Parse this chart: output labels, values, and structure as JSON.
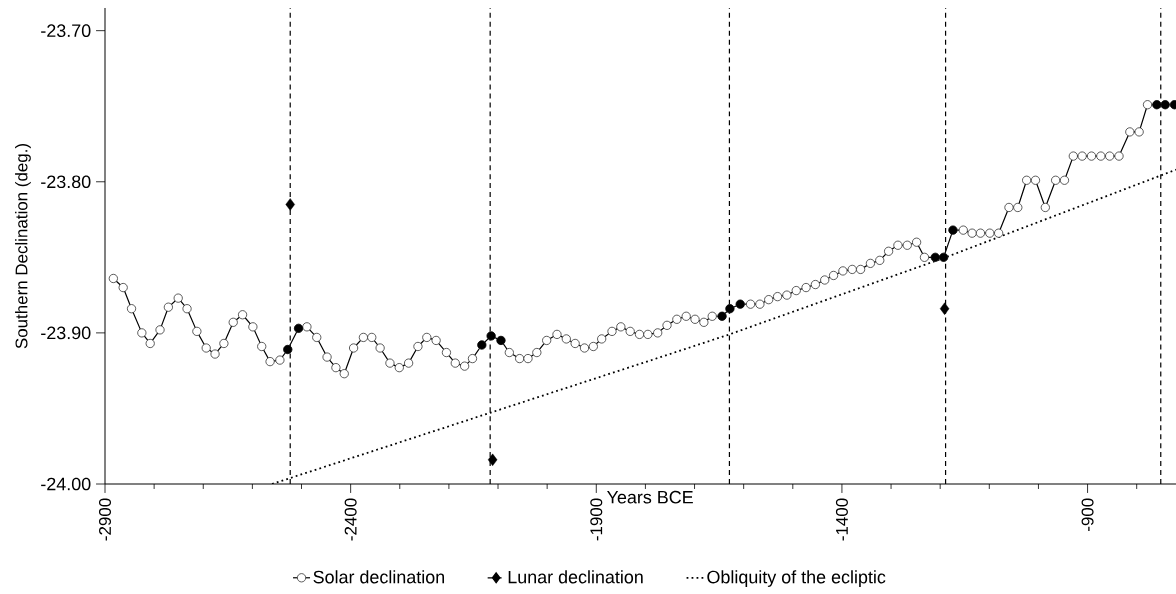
{
  "chart_data": {
    "type": "line",
    "xlabel": "Years BCE",
    "ylabel": "Southern Declination (deg.)",
    "xlim": [
      -2900,
      -720
    ],
    "ylim": [
      -24.0,
      -23.685
    ],
    "xticks": [
      -2900,
      {
        "value": -2800,
        "label": null
      },
      {
        "value": -2700,
        "label": null
      },
      {
        "value": -2600,
        "label": null
      },
      {
        "value": -2500,
        "label": null
      },
      -2400,
      {
        "value": -2300,
        "label": null
      },
      {
        "value": -2200,
        "label": null
      },
      {
        "value": -2100,
        "label": null
      },
      {
        "value": -2000,
        "label": null
      },
      -1900,
      {
        "value": -1800,
        "label": null
      },
      {
        "value": -1700,
        "label": null
      },
      {
        "value": -1600,
        "label": null
      },
      {
        "value": -1500,
        "label": null
      },
      -1400,
      {
        "value": -1300,
        "label": null
      },
      {
        "value": -1200,
        "label": null
      },
      {
        "value": -1100,
        "label": null
      },
      {
        "value": -1000,
        "label": null
      },
      -900,
      {
        "value": -800,
        "label": null
      }
    ],
    "yticks": [
      {
        "value": -23.7,
        "label": "-23.70"
      },
      {
        "value": -23.8,
        "label": "-23.80"
      },
      {
        "value": -23.9,
        "label": "-23.90"
      },
      {
        "value": -24.0,
        "label": "-24.00"
      }
    ],
    "legend": "bottom",
    "ref_lines": [
      {
        "axis": "x",
        "value": -2523,
        "color": "#000000",
        "line_style": "dashed"
      },
      {
        "axis": "x",
        "value": -2116,
        "color": "#000000",
        "line_style": "dashed"
      },
      {
        "axis": "x",
        "value": -1629,
        "color": "#000000",
        "line_style": "dashed"
      },
      {
        "axis": "x",
        "value": -1189,
        "color": "#000000",
        "line_style": "dashed"
      },
      {
        "axis": "x",
        "value": -751,
        "color": "#000000",
        "line_style": "dashed"
      }
    ],
    "series": [
      {
        "name": "Solar declination",
        "color": "#000000",
        "marker": "circle",
        "line_style": "solid",
        "x": [
          -2883,
          -2863,
          -2846,
          -2825,
          -2808,
          -2788,
          -2771,
          -2751,
          -2733,
          -2713,
          -2694,
          -2676,
          -2658,
          -2639,
          -2620,
          -2599,
          -2581,
          -2564,
          -2544,
          -2528,
          -2506,
          -2489,
          -2469,
          -2448,
          -2430,
          -2413,
          -2394,
          -2374,
          -2357,
          -2340,
          -2320,
          -2301,
          -2282,
          -2263,
          -2245,
          -2226,
          -2205,
          -2187,
          -2168,
          -2152,
          -2133,
          -2114,
          -2094,
          -2077,
          -2056,
          -2039,
          -2021,
          -2001,
          -1980,
          -1961,
          -1943,
          -1924,
          -1906,
          -1889,
          -1868,
          -1850,
          -1831,
          -1812,
          -1795,
          -1775,
          -1756,
          -1736,
          -1717,
          -1699,
          -1681,
          -1664,
          -1644,
          -1628,
          -1607,
          -1586,
          -1567,
          -1549,
          -1531,
          -1512,
          -1493,
          -1473,
          -1454,
          -1435,
          -1417,
          -1398,
          -1379,
          -1362,
          -1342,
          -1323,
          -1305,
          -1286,
          -1267,
          -1248,
          -1232,
          -1210,
          -1193,
          -1174,
          -1153,
          -1135,
          -1118,
          -1099,
          -1081,
          -1060,
          -1042,
          -1024,
          -1006,
          -986,
          -965,
          -947,
          -929,
          -911,
          -892,
          -873,
          -855,
          -836,
          -814,
          -795,
          -778,
          -759,
          -742,
          -723
        ],
        "values": [
          -23.864,
          -23.87,
          -23.884,
          -23.9,
          -23.907,
          -23.898,
          -23.883,
          -23.877,
          -23.884,
          -23.899,
          -23.91,
          -23.914,
          -23.907,
          -23.893,
          -23.888,
          -23.896,
          -23.909,
          -23.919,
          -23.918,
          -23.911,
          -23.897,
          -23.896,
          -23.903,
          -23.916,
          -23.923,
          -23.927,
          -23.91,
          -23.903,
          -23.903,
          -23.91,
          -23.92,
          -23.923,
          -23.92,
          -23.909,
          -23.903,
          -23.905,
          -23.913,
          -23.92,
          -23.922,
          -23.917,
          -23.908,
          -23.902,
          -23.905,
          -23.913,
          -23.917,
          -23.917,
          -23.913,
          -23.905,
          -23.901,
          -23.904,
          -23.907,
          -23.91,
          -23.909,
          -23.904,
          -23.899,
          -23.896,
          -23.899,
          -23.901,
          -23.901,
          -23.9,
          -23.895,
          -23.891,
          -23.889,
          -23.891,
          -23.893,
          -23.889,
          -23.889,
          -23.884,
          -23.881,
          -23.881,
          -23.881,
          -23.878,
          -23.876,
          -23.875,
          -23.872,
          -23.87,
          -23.868,
          -23.865,
          -23.862,
          -23.859,
          -23.858,
          -23.858,
          -23.854,
          -23.852,
          -23.846,
          -23.842,
          -23.842,
          -23.84,
          -23.85,
          -23.85,
          -23.85,
          -23.832,
          -23.832,
          -23.834,
          -23.834,
          -23.834,
          -23.834,
          -23.817,
          -23.817,
          -23.799,
          -23.799,
          -23.817,
          -23.799,
          -23.799,
          -23.783,
          -23.783,
          -23.783,
          -23.783,
          -23.783,
          -23.783,
          -23.767,
          -23.767,
          -23.749,
          -23.749,
          -23.749,
          -23.749
        ]
      },
      {
        "type": "scatter",
        "color": "#000000",
        "marker": "circle",
        "x": [
          -2528,
          -2506,
          -2133,
          -2114,
          -2094,
          -1644,
          -1628,
          -1607,
          -1210,
          -1193,
          -1174,
          -759,
          -742,
          -723
        ],
        "values": [
          -23.911,
          -23.897,
          -23.908,
          -23.902,
          -23.905,
          -23.889,
          -23.884,
          -23.881,
          -23.85,
          -23.85,
          -23.832,
          -23.749,
          -23.749,
          -23.749
        ]
      },
      {
        "name": "Lunar declination",
        "type": "scatter",
        "color": "#000000",
        "marker": "diamond",
        "line_style": "dashed",
        "x": [
          -2523,
          -2111,
          -1191
        ],
        "values": [
          -23.815,
          -23.984,
          -23.884
        ]
      },
      {
        "name": "Obliquity of the ecliptic",
        "type": "line",
        "color": "#000000",
        "marker": "none",
        "line_style": "dotted",
        "x": [
          -2560,
          -1797,
          -1629,
          -1189,
          -720
        ],
        "values": [
          -24.0,
          -23.919,
          -23.901,
          -23.85,
          -23.792
        ]
      }
    ]
  }
}
